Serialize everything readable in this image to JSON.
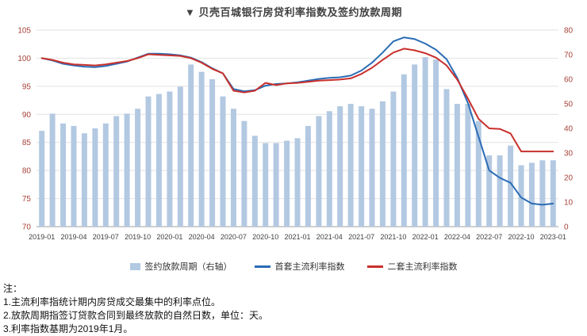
{
  "title": "▼ 贝壳百城银行房贷利率指数及签约放款周期",
  "legend": {
    "bar": "签约放款周期（右轴）",
    "first": "首套主流利率指数",
    "second": "二套主流利率指数"
  },
  "notes": {
    "heading": "注：",
    "line1": "1.主流利率指统计期内房贷成交最集中的利率点位。",
    "line2": "2.放款周期指签订贷款合同到最终放款的自然日数，单位：天。",
    "line3": "3.利率指数基期为2019年1月。"
  },
  "colors": {
    "bar": "#b3c9e2",
    "first_line": "#2b6cb5",
    "second_line": "#c9302c",
    "axis_label": "#a8423a",
    "x_label": "#404040",
    "grid": "#e2e2e2",
    "axis_line": "#9f9f9f"
  },
  "chart_data": {
    "type": "bar+line",
    "title": "贝壳百城银行房贷利率指数及签约放款周期",
    "x": [
      "2019-01",
      "2019-02",
      "2019-03",
      "2019-04",
      "2019-05",
      "2019-06",
      "2019-07",
      "2019-08",
      "2019-09",
      "2019-10",
      "2019-11",
      "2019-12",
      "2020-01",
      "2020-02",
      "2020-03",
      "2020-04",
      "2020-05",
      "2020-06",
      "2020-07",
      "2020-08",
      "2020-09",
      "2020-10",
      "2020-11",
      "2020-12",
      "2021-01",
      "2021-02",
      "2021-03",
      "2021-04",
      "2021-05",
      "2021-06",
      "2021-07",
      "2021-08",
      "2021-09",
      "2021-10",
      "2021-11",
      "2021-12",
      "2022-01",
      "2022-02",
      "2022-03",
      "2022-04",
      "2022-05",
      "2022-06",
      "2022-07",
      "2022-08",
      "2022-09",
      "2022-10",
      "2022-11",
      "2022-12",
      "2023-01"
    ],
    "x_tick_labels": [
      "2019-01",
      "2019-04",
      "2019-07",
      "2019-10",
      "2020-01",
      "2020-04",
      "2020-07",
      "2020-10",
      "2021-01",
      "2021-04",
      "2021-07",
      "2021-10",
      "2022-01",
      "2022-04",
      "2022-07",
      "2022-10",
      "2023-01"
    ],
    "left_axis": {
      "min": 70,
      "max": 105,
      "ticks": [
        70,
        75,
        80,
        85,
        90,
        95,
        100,
        105
      ]
    },
    "right_axis": {
      "min": 0,
      "max": 80,
      "ticks": [
        0,
        10,
        20,
        30,
        40,
        50,
        60,
        70,
        80
      ]
    },
    "grid": "horizontal",
    "legend_position": "bottom",
    "series": [
      {
        "name": "签约放款周期（右轴）",
        "type": "bar",
        "axis": "right",
        "unit": "天",
        "values": [
          39,
          46,
          42,
          41,
          38,
          40,
          42,
          45,
          46,
          48,
          53,
          54,
          55,
          57,
          66,
          63,
          60,
          53,
          48,
          43,
          37,
          34,
          34,
          35,
          36,
          41,
          45,
          47,
          49,
          50,
          49,
          48,
          51,
          55,
          62,
          66,
          69,
          68,
          56,
          50,
          50,
          43,
          29,
          29,
          33,
          25,
          26,
          27,
          27
        ]
      },
      {
        "name": "首套主流利率指数",
        "type": "line",
        "axis": "left",
        "values": [
          100.0,
          99.6,
          99.0,
          98.7,
          98.5,
          98.4,
          98.6,
          99.0,
          99.4,
          100.1,
          100.8,
          100.8,
          100.7,
          100.5,
          100.1,
          99.3,
          98.2,
          97.3,
          94.5,
          94.1,
          94.3,
          95.1,
          95.4,
          95.5,
          95.7,
          96.0,
          96.3,
          96.5,
          96.6,
          96.9,
          97.8,
          99.2,
          101.0,
          103.0,
          103.7,
          103.4,
          102.6,
          101.5,
          99.8,
          96.5,
          92.0,
          86.0,
          80.0,
          78.7,
          77.8,
          75.2,
          74.1,
          73.9,
          74.1
        ]
      },
      {
        "name": "二套主流利率指数",
        "type": "line",
        "axis": "left",
        "values": [
          100.0,
          99.7,
          99.2,
          98.9,
          98.8,
          98.7,
          98.9,
          99.2,
          99.5,
          100.0,
          100.7,
          100.6,
          100.5,
          100.4,
          100.0,
          99.2,
          98.1,
          97.3,
          94.2,
          93.9,
          94.2,
          95.6,
          95.2,
          95.5,
          95.6,
          95.8,
          96.0,
          96.1,
          96.2,
          96.4,
          97.2,
          98.3,
          99.7,
          101.0,
          101.7,
          101.4,
          100.9,
          100.1,
          98.7,
          96.2,
          92.8,
          89.2,
          87.5,
          87.4,
          86.6,
          83.4,
          83.4,
          83.4,
          83.4
        ]
      }
    ]
  }
}
